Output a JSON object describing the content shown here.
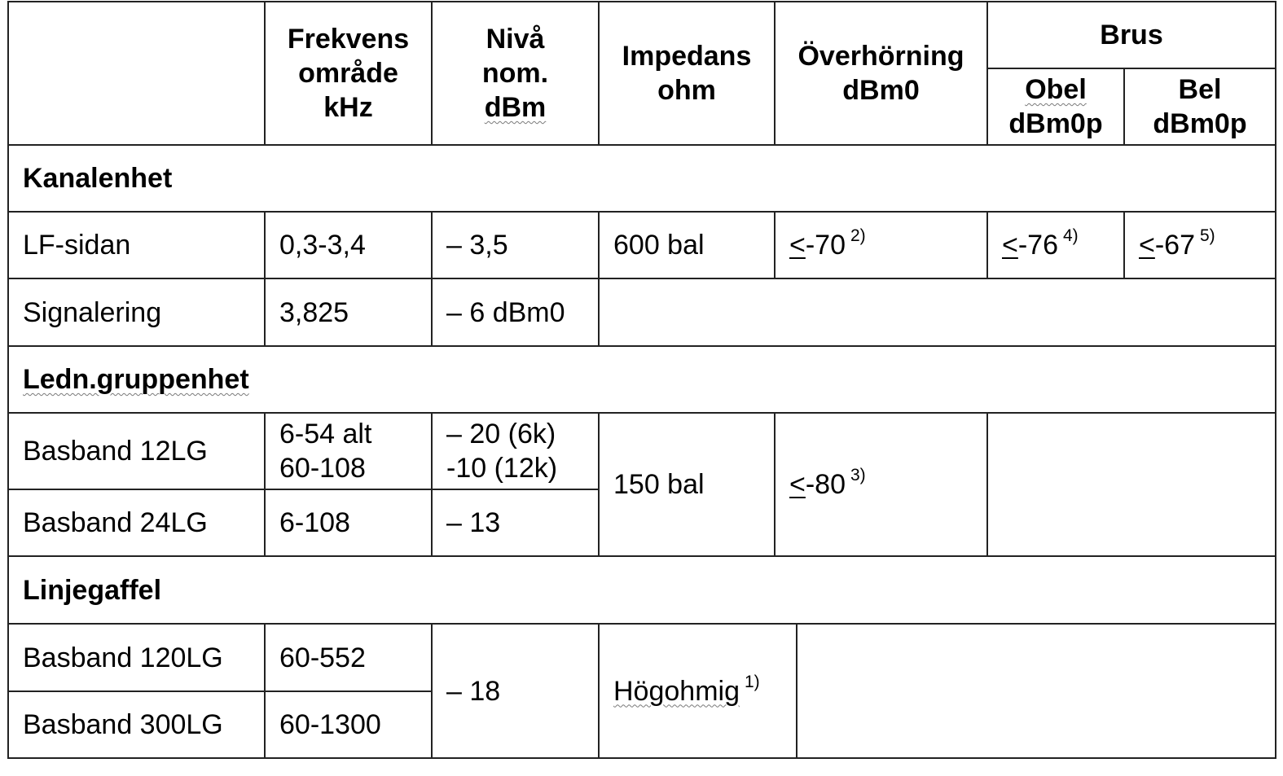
{
  "table": {
    "header": {
      "frekvens": [
        "Frekvens",
        "område",
        "kHz"
      ],
      "niva": [
        "Nivå",
        "nom.",
        "dBm"
      ],
      "impedans": [
        "Impedans",
        "ohm"
      ],
      "overhorning": [
        "Överhörning",
        "dBm0"
      ],
      "brus": "Brus",
      "obel": [
        "Obel",
        "dBm0p"
      ],
      "bel": [
        "Bel",
        "dBm0p"
      ]
    },
    "sections": {
      "kanalenhet": "Kanalenhet",
      "ledn": "Ledn.gruppenhet",
      "linjegaffel": "Linjegaffel"
    },
    "rows": {
      "lf": {
        "name": "LF-sidan",
        "freq": "0,3-3,4",
        "level": "– 3,5",
        "impedance": "600 bal",
        "crosstalk_sym": "<",
        "crosstalk_val": "-70",
        "crosstalk_note": "2)",
        "obel_sym": "<",
        "obel_val": "-76",
        "obel_note": "4)",
        "bel_sym": "<",
        "bel_val": "-67",
        "bel_note": "5)"
      },
      "signalering": {
        "name": "Signalering",
        "freq": "3,825",
        "level": "– 6 dBm0"
      },
      "bb12": {
        "name": "Basband 12LG",
        "freq_1": "6-54 alt",
        "freq_2": "60-108",
        "level_1": "– 20 (6k)",
        "level_2": "-10 (12k)"
      },
      "bb24": {
        "name": "Basband 24LG",
        "freq": "6-108",
        "level": "– 13"
      },
      "ledn_shared": {
        "impedance": "150 bal",
        "crosstalk_sym": "<",
        "crosstalk_val": "-80",
        "crosstalk_note": "3)"
      },
      "bb120": {
        "name": "Basband 120LG",
        "freq": "60-552"
      },
      "bb300": {
        "name": "Basband 300LG",
        "freq": "60-1300"
      },
      "linje_shared": {
        "level": "– 18",
        "impedance": "Högohmig",
        "impedance_note": "1)"
      }
    }
  }
}
